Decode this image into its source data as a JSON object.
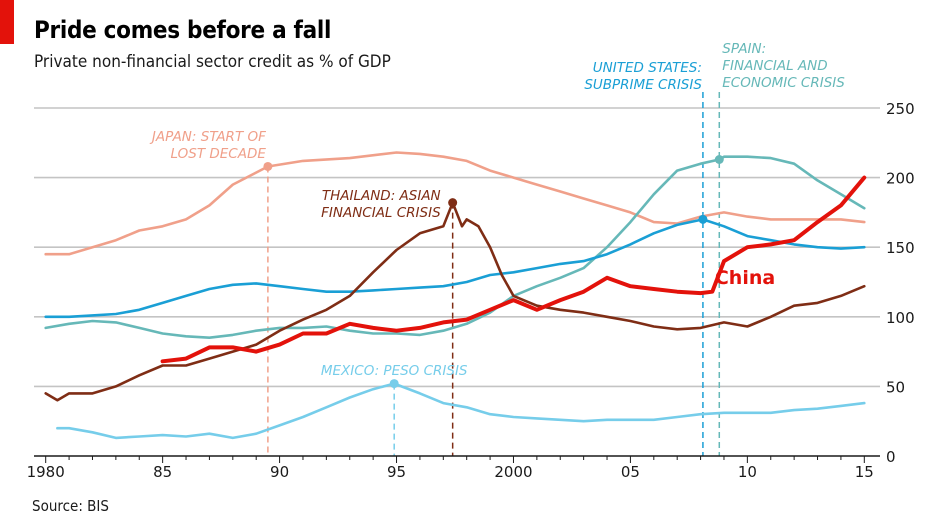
{
  "title": "Pride comes before a fall",
  "subtitle": "Private non-financial sector credit as % of GDP",
  "source": "Source: BIS",
  "colors": {
    "japan": "#f0a08a",
    "thailand": "#7f2d15",
    "us": "#1a9fd5",
    "spain": "#66b8b8",
    "mexico": "#76cdea",
    "china": "#e3120b",
    "grid": "#c4c4c4",
    "axis": "#1a1a1a"
  },
  "chart_data": {
    "type": "line",
    "xlim": [
      1979.5,
      2015.5
    ],
    "ylim": [
      0,
      250
    ],
    "grid": true,
    "x_ticks": [
      {
        "value": 1980,
        "label": "1980"
      },
      {
        "value": 1985,
        "label": "85"
      },
      {
        "value": 1990,
        "label": "90"
      },
      {
        "value": 1995,
        "label": "95"
      },
      {
        "value": 2000,
        "label": "2000"
      },
      {
        "value": 2005,
        "label": "05"
      },
      {
        "value": 2010,
        "label": "10"
      },
      {
        "value": 2015,
        "label": "15"
      }
    ],
    "y_ticks": [
      {
        "value": 0,
        "label": "0"
      },
      {
        "value": 50,
        "label": "50"
      },
      {
        "value": 100,
        "label": "100"
      },
      {
        "value": 150,
        "label": "150"
      },
      {
        "value": 200,
        "label": "200"
      },
      {
        "value": 250,
        "label": "250"
      }
    ],
    "series": [
      {
        "key": "japan",
        "points": [
          [
            1980,
            145
          ],
          [
            1981,
            145
          ],
          [
            1982,
            150
          ],
          [
            1983,
            155
          ],
          [
            1984,
            162
          ],
          [
            1985,
            165
          ],
          [
            1986,
            170
          ],
          [
            1987,
            180
          ],
          [
            1988,
            195
          ],
          [
            1989.5,
            208
          ],
          [
            1991,
            212
          ],
          [
            1993,
            214
          ],
          [
            1995,
            218
          ],
          [
            1996,
            217
          ],
          [
            1997,
            215
          ],
          [
            1998,
            212
          ],
          [
            1999,
            205
          ],
          [
            2000,
            200
          ],
          [
            2001,
            195
          ],
          [
            2002,
            190
          ],
          [
            2003,
            185
          ],
          [
            2004,
            180
          ],
          [
            2005,
            175
          ],
          [
            2006,
            168
          ],
          [
            2007,
            167
          ],
          [
            2008,
            172
          ],
          [
            2009,
            175
          ],
          [
            2010,
            172
          ],
          [
            2011,
            170
          ],
          [
            2012,
            170
          ],
          [
            2013,
            170
          ],
          [
            2014,
            170
          ],
          [
            2015,
            168
          ]
        ]
      },
      {
        "key": "thailand",
        "points": [
          [
            1980,
            45
          ],
          [
            1980.5,
            40
          ],
          [
            1981,
            45
          ],
          [
            1982,
            45
          ],
          [
            1983,
            50
          ],
          [
            1984,
            58
          ],
          [
            1985,
            65
          ],
          [
            1986,
            65
          ],
          [
            1987,
            70
          ],
          [
            1988,
            75
          ],
          [
            1989,
            80
          ],
          [
            1990,
            90
          ],
          [
            1991,
            98
          ],
          [
            1992,
            105
          ],
          [
            1993,
            115
          ],
          [
            1994,
            132
          ],
          [
            1995,
            148
          ],
          [
            1996,
            160
          ],
          [
            1997,
            165
          ],
          [
            1997.4,
            182
          ],
          [
            1997.8,
            165
          ],
          [
            1998,
            170
          ],
          [
            1998.5,
            165
          ],
          [
            1999,
            150
          ],
          [
            1999.5,
            130
          ],
          [
            2000,
            115
          ],
          [
            2001,
            108
          ],
          [
            2002,
            105
          ],
          [
            2003,
            103
          ],
          [
            2004,
            100
          ],
          [
            2005,
            97
          ],
          [
            2006,
            93
          ],
          [
            2007,
            91
          ],
          [
            2008,
            92
          ],
          [
            2009,
            96
          ],
          [
            2010,
            93
          ],
          [
            2011,
            100
          ],
          [
            2012,
            108
          ],
          [
            2013,
            110
          ],
          [
            2014,
            115
          ],
          [
            2015,
            122
          ]
        ]
      },
      {
        "key": "us",
        "points": [
          [
            1980,
            100
          ],
          [
            1981,
            100
          ],
          [
            1982,
            101
          ],
          [
            1983,
            102
          ],
          [
            1984,
            105
          ],
          [
            1985,
            110
          ],
          [
            1986,
            115
          ],
          [
            1987,
            120
          ],
          [
            1988,
            123
          ],
          [
            1989,
            124
          ],
          [
            1990,
            122
          ],
          [
            1991,
            120
          ],
          [
            1992,
            118
          ],
          [
            1993,
            118
          ],
          [
            1994,
            119
          ],
          [
            1995,
            120
          ],
          [
            1996,
            121
          ],
          [
            1997,
            122
          ],
          [
            1998,
            125
          ],
          [
            1999,
            130
          ],
          [
            2000,
            132
          ],
          [
            2001,
            135
          ],
          [
            2002,
            138
          ],
          [
            2003,
            140
          ],
          [
            2004,
            145
          ],
          [
            2005,
            152
          ],
          [
            2006,
            160
          ],
          [
            2007,
            166
          ],
          [
            2008.1,
            170
          ],
          [
            2009,
            165
          ],
          [
            2010,
            158
          ],
          [
            2011,
            155
          ],
          [
            2012,
            152
          ],
          [
            2013,
            150
          ],
          [
            2014,
            149
          ],
          [
            2015,
            150
          ]
        ]
      },
      {
        "key": "spain",
        "points": [
          [
            1980,
            92
          ],
          [
            1981,
            95
          ],
          [
            1982,
            97
          ],
          [
            1983,
            96
          ],
          [
            1984,
            92
          ],
          [
            1985,
            88
          ],
          [
            1986,
            86
          ],
          [
            1987,
            85
          ],
          [
            1988,
            87
          ],
          [
            1989,
            90
          ],
          [
            1990,
            92
          ],
          [
            1991,
            92
          ],
          [
            1992,
            93
          ],
          [
            1993,
            90
          ],
          [
            1994,
            88
          ],
          [
            1995,
            88
          ],
          [
            1996,
            87
          ],
          [
            1997,
            90
          ],
          [
            1998,
            95
          ],
          [
            1999,
            103
          ],
          [
            2000,
            115
          ],
          [
            2001,
            122
          ],
          [
            2002,
            128
          ],
          [
            2003,
            135
          ],
          [
            2004,
            150
          ],
          [
            2005,
            168
          ],
          [
            2006,
            188
          ],
          [
            2007,
            205
          ],
          [
            2008,
            210
          ],
          [
            2008.8,
            213
          ],
          [
            2009,
            215
          ],
          [
            2010,
            215
          ],
          [
            2011,
            214
          ],
          [
            2012,
            210
          ],
          [
            2013,
            198
          ],
          [
            2014,
            188
          ],
          [
            2015,
            178
          ]
        ]
      },
      {
        "key": "mexico",
        "points": [
          [
            1980.5,
            20
          ],
          [
            1981,
            20
          ],
          [
            1982,
            17
          ],
          [
            1983,
            13
          ],
          [
            1984,
            14
          ],
          [
            1985,
            15
          ],
          [
            1986,
            14
          ],
          [
            1987,
            16
          ],
          [
            1988,
            13
          ],
          [
            1989,
            16
          ],
          [
            1990,
            22
          ],
          [
            1991,
            28
          ],
          [
            1992,
            35
          ],
          [
            1993,
            42
          ],
          [
            1994,
            48
          ],
          [
            1994.9,
            52
          ],
          [
            1996,
            45
          ],
          [
            1997,
            38
          ],
          [
            1998,
            35
          ],
          [
            1999,
            30
          ],
          [
            2000,
            28
          ],
          [
            2001,
            27
          ],
          [
            2002,
            26
          ],
          [
            2003,
            25
          ],
          [
            2004,
            26
          ],
          [
            2005,
            26
          ],
          [
            2006,
            26
          ],
          [
            2007,
            28
          ],
          [
            2008,
            30
          ],
          [
            2009,
            31
          ],
          [
            2010,
            31
          ],
          [
            2011,
            31
          ],
          [
            2012,
            33
          ],
          [
            2013,
            34
          ],
          [
            2014,
            36
          ],
          [
            2015,
            38
          ]
        ]
      },
      {
        "key": "china",
        "points": [
          [
            1985,
            68
          ],
          [
            1986,
            70
          ],
          [
            1987,
            78
          ],
          [
            1988,
            78
          ],
          [
            1989,
            75
          ],
          [
            1990,
            80
          ],
          [
            1991,
            88
          ],
          [
            1992,
            88
          ],
          [
            1993,
            95
          ],
          [
            1994,
            92
          ],
          [
            1995,
            90
          ],
          [
            1996,
            92
          ],
          [
            1997,
            96
          ],
          [
            1998,
            98
          ],
          [
            1999,
            105
          ],
          [
            2000,
            112
          ],
          [
            2001,
            105
          ],
          [
            2002,
            112
          ],
          [
            2003,
            118
          ],
          [
            2004,
            128
          ],
          [
            2005,
            122
          ],
          [
            2006,
            120
          ],
          [
            2007,
            118
          ],
          [
            2008,
            117
          ],
          [
            2008.5,
            118
          ],
          [
            2009,
            140
          ],
          [
            2010,
            150
          ],
          [
            2011,
            152
          ],
          [
            2012,
            155
          ],
          [
            2013,
            168
          ],
          [
            2014,
            180
          ],
          [
            2015,
            200
          ]
        ]
      }
    ],
    "events": [
      {
        "key": "japan",
        "x": 1989.5,
        "y": 208,
        "label_lines": [
          "JAPAN: START OF",
          "LOST DECADE"
        ]
      },
      {
        "key": "thailand",
        "x": 1997.4,
        "y": 182,
        "label_lines": [
          "THAILAND: ASIAN",
          "FINANCIAL CRISIS"
        ]
      },
      {
        "key": "mexico",
        "x": 1994.9,
        "y": 52,
        "label_lines": [
          "MEXICO: PESO CRISIS"
        ]
      },
      {
        "key": "us",
        "x": 2008.1,
        "y": 170,
        "label_lines": [
          "UNITED STATES:",
          "SUBPRIME CRISIS"
        ]
      },
      {
        "key": "spain",
        "x": 2008.8,
        "y": 213,
        "label_lines": [
          "SPAIN:",
          "FINANCIAL AND",
          "ECONOMIC CRISIS"
        ]
      }
    ],
    "series_labels": [
      {
        "key": "china",
        "text": "China"
      }
    ]
  }
}
